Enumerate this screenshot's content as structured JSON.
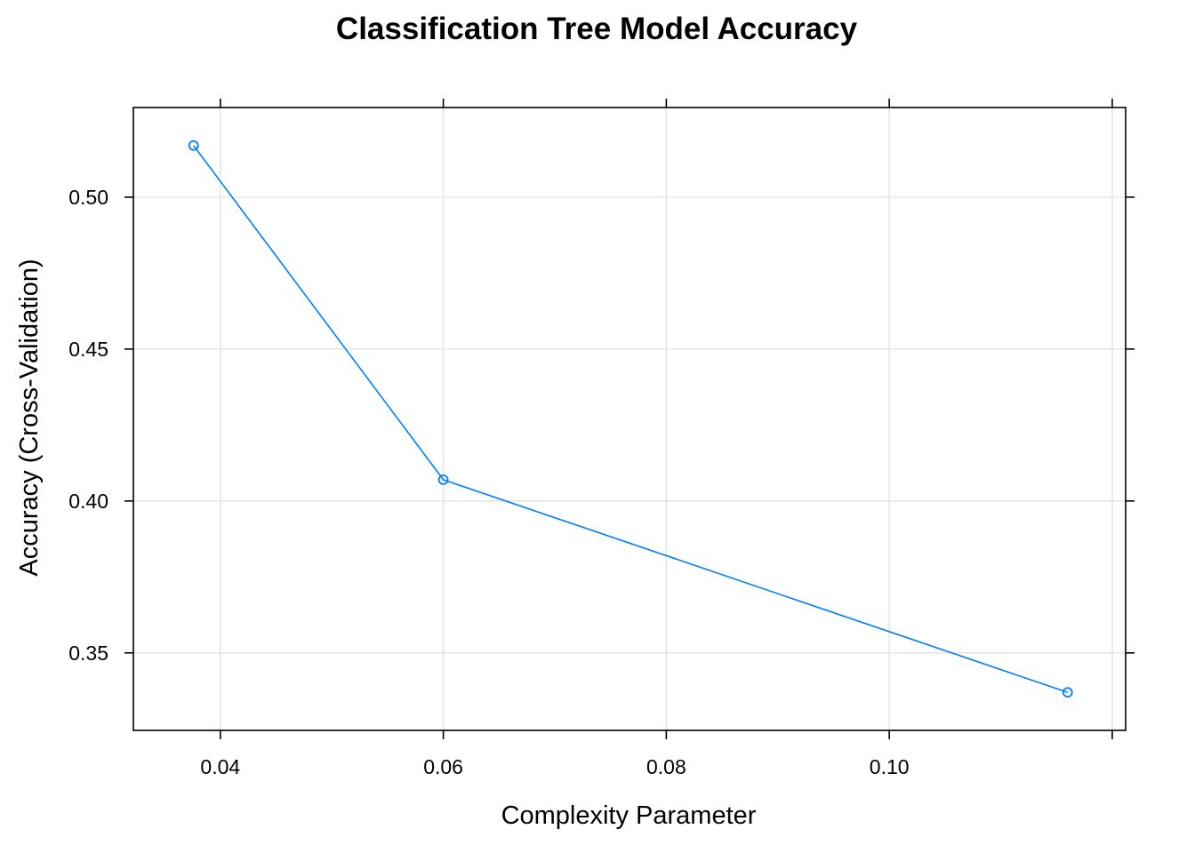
{
  "chart_data": {
    "type": "line",
    "title": "Classification Tree Model Accuracy",
    "xlabel": "Complexity Parameter",
    "ylabel": "Accuracy (Cross-Validation)",
    "x": [
      0.0376,
      0.06,
      0.116
    ],
    "series": [
      {
        "values": [
          0.517,
          0.407,
          0.337
        ]
      }
    ],
    "xlim": [
      0.0322,
      0.1212
    ],
    "ylim": [
      0.3245,
      0.5295
    ],
    "xticks": [
      0.04,
      0.06,
      0.08,
      0.1,
      0.12
    ],
    "xtick_labels": [
      "0.04",
      "0.06",
      "0.08",
      "0.10",
      ""
    ],
    "yticks": [
      0.35,
      0.4,
      0.45,
      0.5
    ],
    "ytick_labels": [
      "0.35",
      "0.40",
      "0.45",
      "0.50"
    ],
    "grid": true,
    "line_color": "#0080ff",
    "grid_color": "#e6e6e6",
    "marker": "open-circle"
  }
}
